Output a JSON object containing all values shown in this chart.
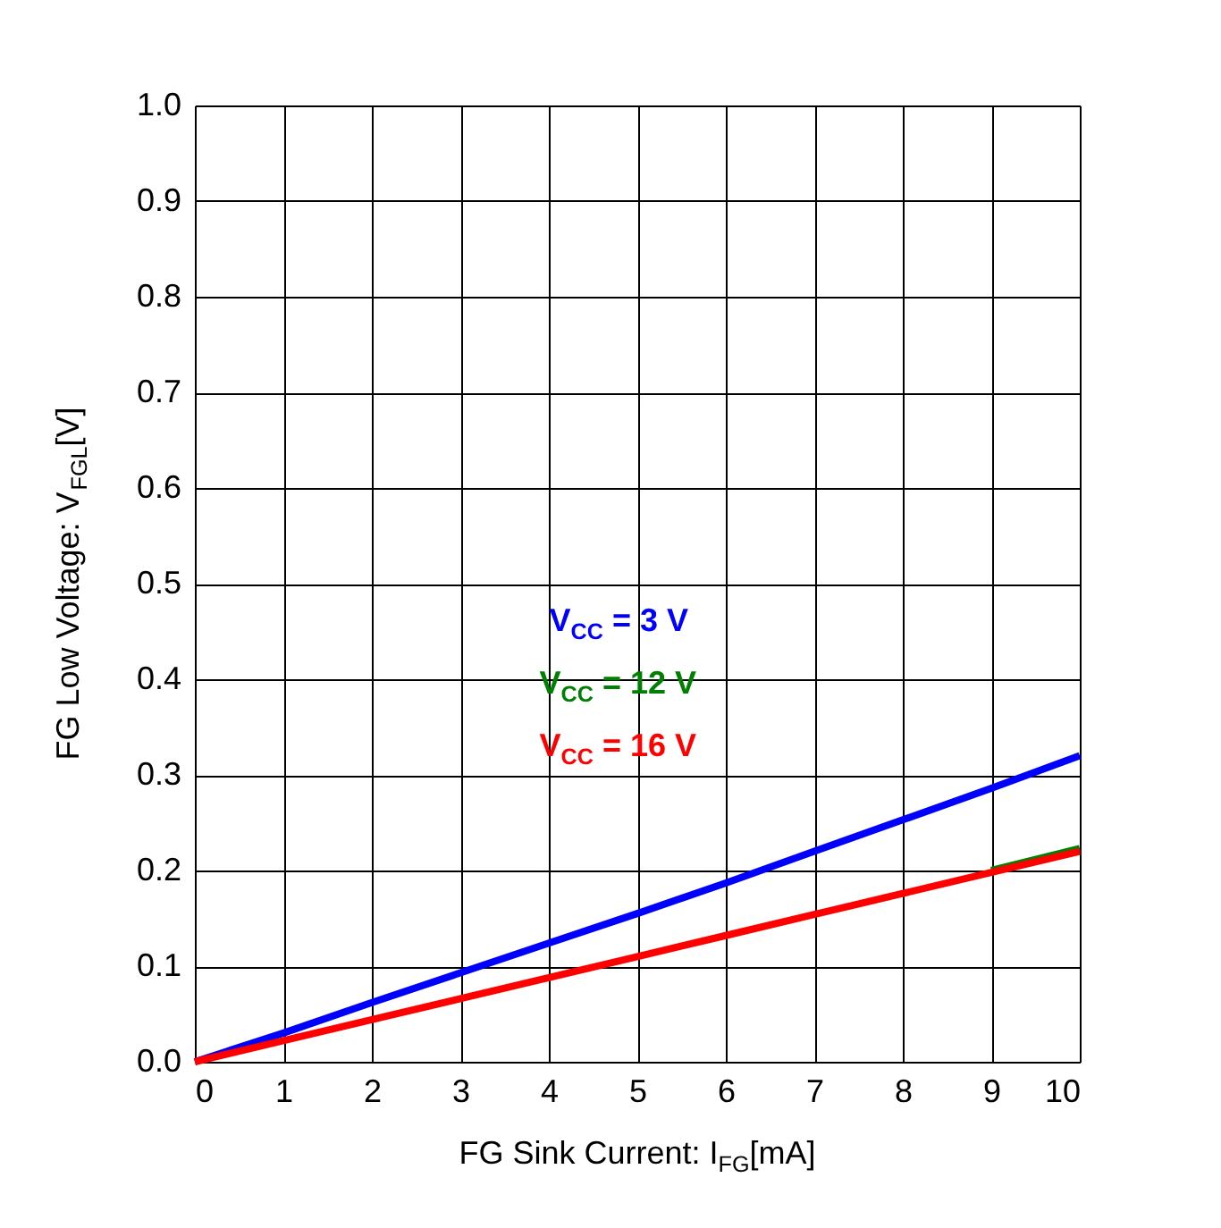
{
  "chart_data": {
    "type": "line",
    "xlabel": "FG Sink Current: I$_{FG}$[mA]",
    "ylabel": "FG Low Voltage: V$_{FGL}$[V]",
    "x": [
      0,
      1,
      2,
      3,
      4,
      5,
      6,
      7,
      8,
      9,
      10
    ],
    "series": [
      {
        "name": "V$_{CC}$ = 3 V",
        "color": "#0000ff",
        "values": [
          0,
          0.03,
          0.062,
          0.093,
          0.124,
          0.155,
          0.187,
          0.22,
          0.253,
          0.286,
          0.32
        ]
      },
      {
        "name": "V$_{CC}$ = 12 V",
        "color": "#008000",
        "values": [
          null,
          null,
          null,
          null,
          null,
          null,
          null,
          null,
          null,
          0.2,
          0.223
        ]
      },
      {
        "name": "V$_{CC}$ = 16 V",
        "color": "#ff0000",
        "values": [
          0,
          0.022,
          0.044,
          0.066,
          0.088,
          0.11,
          0.132,
          0.154,
          0.176,
          0.198,
          0.22
        ]
      }
    ],
    "xlim": [
      0,
      10
    ],
    "xticks": [
      0,
      1,
      2,
      3,
      4,
      5,
      6,
      7,
      8,
      9,
      10
    ],
    "ylim": [
      0,
      1
    ],
    "yticks": [
      {
        "value": 0,
        "label": "0.0"
      },
      0.1,
      0.2,
      0.3,
      0.4,
      0.5,
      0.6,
      0.7,
      0.8,
      0.9,
      {
        "value": 1,
        "label": "1.0"
      }
    ],
    "grid": true,
    "legend": "center",
    "line_style": "solid",
    "marker": "none"
  }
}
